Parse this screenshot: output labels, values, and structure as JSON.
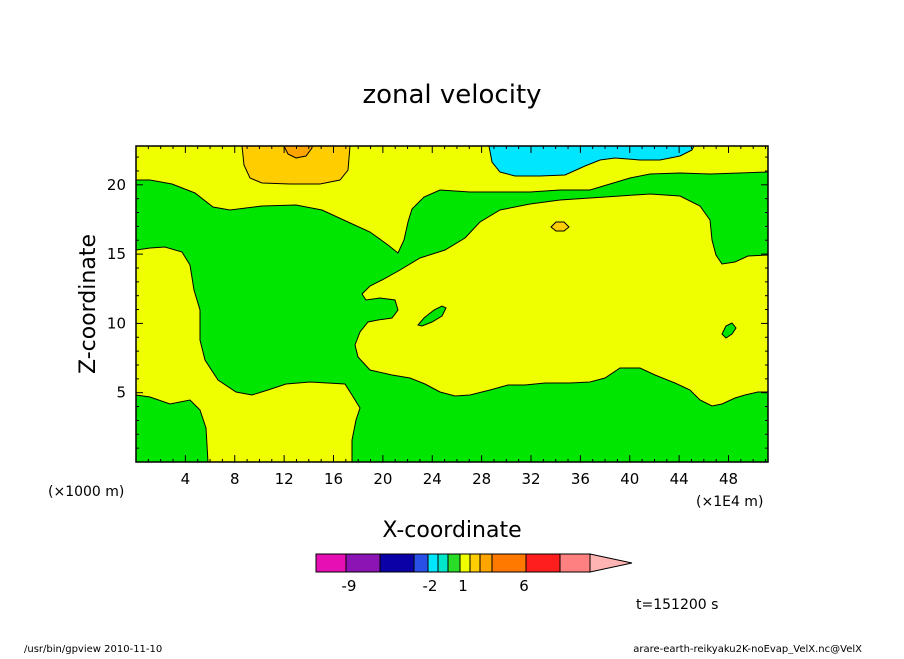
{
  "chart_data": {
    "type": "heatmap",
    "title": "zonal velocity",
    "xlabel": "X-coordinate",
    "ylabel": "Z-coordinate",
    "x_unit_left": "(×1000 m)",
    "x_unit_right": "(×1E4 m)",
    "xlim": [
      0,
      51.2
    ],
    "ylim": [
      0,
      22.8
    ],
    "x_ticks": [
      4,
      8,
      12,
      16,
      20,
      24,
      28,
      32,
      36,
      40,
      44,
      48
    ],
    "y_ticks": [
      5,
      10,
      15,
      20
    ],
    "colorbar": {
      "colors": [
        "#e60fb4",
        "#8c14b4",
        "#0a00a5",
        "#2850e6",
        "#00e6ff",
        "#00e6c8",
        "#28dc28",
        "#f0ff00",
        "#ffcd00",
        "#ffa500",
        "#ff7800",
        "#ff1e1e",
        "#ff8080",
        "#ffb4b4"
      ],
      "labels": [
        "-9",
        "-2",
        "1",
        "6"
      ]
    },
    "fill_colors": {
      "green": "#00e600",
      "yellow": "#f0ff00",
      "orange_light": "#ffcd00",
      "orange": "#ffa500",
      "cyan": "#00e6ff"
    }
  },
  "time_label": "t=151200 s",
  "footer_left": "/usr/bin/gpview  2010-11-10",
  "footer_right": "arare-earth-reikyaku2K-noEvap_VelX.nc@VelX"
}
